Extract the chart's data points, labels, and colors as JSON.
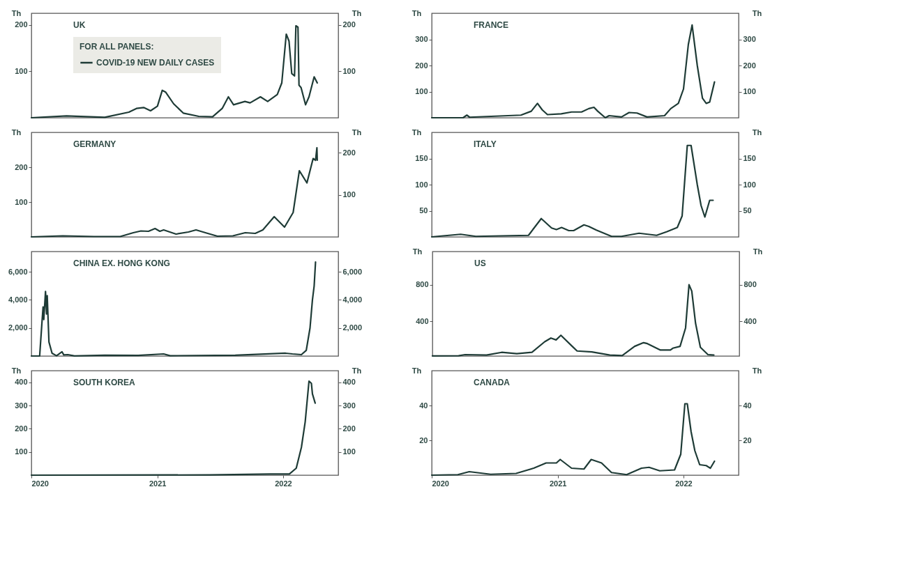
{
  "chart_data": [
    {
      "type": "line",
      "title": "UK",
      "ylabel": "Th",
      "y2label": "Th",
      "legend_title": "FOR ALL PANELS:",
      "legend": "top left",
      "tick_labels": "y",
      "xlim": [
        "2020-01-01",
        "2022-06-10"
      ],
      "xticks": [
        "2020",
        "2021",
        "2022"
      ],
      "ylim": [
        0,
        225
      ],
      "yticks": [
        100,
        200
      ],
      "y2lim": [
        0,
        225
      ],
      "y2ticks": [
        100,
        200
      ],
      "x": [
        "2020-01-01",
        "2020-04-12",
        "2020-08-01",
        "2020-10-10",
        "2020-11-01",
        "2020-11-22",
        "2020-12-12",
        "2021-01-01",
        "2021-01-15",
        "2021-01-25",
        "2021-02-17",
        "2021-03-17",
        "2021-05-01",
        "2021-06-10",
        "2021-07-08",
        "2021-07-26",
        "2021-08-10",
        "2021-09-12",
        "2021-09-27",
        "2021-10-27",
        "2021-11-17",
        "2021-12-15",
        "2021-12-28",
        "2022-01-10",
        "2022-01-18",
        "2022-01-26",
        "2022-02-03",
        "2022-02-07",
        "2022-02-13",
        "2022-02-16",
        "2022-02-22",
        "2022-03-07",
        "2022-03-17",
        "2022-04-01",
        "2022-04-10"
      ],
      "series": [
        {
          "name": "COVID-19 NEW DAILY CASES",
          "color": "#1e3b36",
          "values": [
            0,
            4,
            1,
            12,
            20,
            22,
            15,
            25,
            59,
            55,
            30,
            10,
            3,
            2,
            20,
            45,
            28,
            35,
            32,
            45,
            35,
            50,
            75,
            180,
            165,
            95,
            90,
            198,
            195,
            70,
            65,
            28,
            45,
            88,
            75
          ]
        }
      ]
    },
    {
      "type": "line",
      "title": "FRANCE",
      "ylabel": "Th",
      "y2label": "Th",
      "tick_labels": "y",
      "xlim": [
        "2020-01-01",
        "2022-06-10"
      ],
      "xticks": [
        "2020",
        "2021",
        "2022"
      ],
      "ylim": [
        0,
        400
      ],
      "yticks": [
        100,
        200,
        300
      ],
      "y2lim": [
        0,
        400
      ],
      "y2ticks": [
        100,
        200,
        300
      ],
      "x": [
        "2020-01-01",
        "2020-04-01",
        "2020-04-12",
        "2020-04-20",
        "2020-09-16",
        "2020-10-16",
        "2020-11-03",
        "2020-11-17",
        "2020-12-02",
        "2021-01-11",
        "2021-02-10",
        "2021-03-11",
        "2021-04-01",
        "2021-04-16",
        "2021-04-27",
        "2021-05-19",
        "2021-05-30",
        "2021-07-05",
        "2021-07-27",
        "2021-08-19",
        "2021-09-17",
        "2021-11-07",
        "2021-11-25",
        "2021-12-17",
        "2022-01-01",
        "2022-01-15",
        "2022-01-26",
        "2022-02-10",
        "2022-02-25",
        "2022-03-08",
        "2022-03-18",
        "2022-04-01"
      ],
      "series": [
        {
          "color": "#1e3b36",
          "values": [
            0,
            0,
            10,
            2,
            10,
            25,
            55,
            30,
            12,
            15,
            22,
            22,
            35,
            40,
            25,
            0,
            8,
            3,
            20,
            18,
            3,
            8,
            35,
            55,
            110,
            280,
            355,
            200,
            75,
            55,
            60,
            137
          ]
        }
      ]
    },
    {
      "type": "line",
      "title": "GERMANY",
      "ylabel": "Th",
      "y2label": "Th",
      "tick_labels": "y",
      "xlim": [
        "2020-01-01",
        "2022-06-10"
      ],
      "xticks": [
        "2020",
        "2021",
        "2022"
      ],
      "ylim": [
        0,
        300
      ],
      "yticks": [
        100,
        200
      ],
      "y2lim": [
        0,
        248
      ],
      "y2ticks": [
        100,
        200
      ],
      "x": [
        "2020-01-01",
        "2020-04-01",
        "2020-07-01",
        "2020-09-15",
        "2020-10-23",
        "2020-11-14",
        "2020-12-06",
        "2020-12-25",
        "2021-01-08",
        "2021-01-19",
        "2021-02-24",
        "2021-04-01",
        "2021-04-23",
        "2021-05-27",
        "2021-06-24",
        "2021-08-08",
        "2021-09-13",
        "2021-10-12",
        "2021-11-03",
        "2021-12-06",
        "2022-01-05",
        "2022-01-30",
        "2022-02-17",
        "2022-03-11",
        "2022-03-29",
        "2022-04-05",
        "2022-04-09",
        "2022-04-10"
      ],
      "series": [
        {
          "color": "#1e3b36",
          "values": [
            0,
            3,
            1,
            1,
            12,
            17,
            16,
            24,
            16,
            20,
            8,
            14,
            20,
            10,
            2,
            3,
            12,
            10,
            20,
            58,
            28,
            70,
            190,
            155,
            225,
            220,
            256,
            220
          ]
        }
      ]
    },
    {
      "type": "line",
      "title": "ITALY",
      "ylabel": "Th",
      "y2label": "Th",
      "tick_labels": "y",
      "xlim": [
        "2020-01-01",
        "2022-06-10"
      ],
      "xticks": [
        "2020",
        "2021",
        "2022"
      ],
      "ylim": [
        0,
        200
      ],
      "yticks": [
        50,
        100,
        150
      ],
      "y2lim": [
        0,
        200
      ],
      "y2ticks": [
        50,
        100,
        150
      ],
      "x": [
        "2020-01-01",
        "2020-03-25",
        "2020-05-08",
        "2020-10-08",
        "2020-11-14",
        "2020-12-14",
        "2020-12-28",
        "2021-01-12",
        "2021-02-02",
        "2021-02-16",
        "2021-03-18",
        "2021-04-01",
        "2021-04-23",
        "2021-06-06",
        "2021-07-05",
        "2021-08-25",
        "2021-10-15",
        "2021-11-14",
        "2021-12-14",
        "2021-12-28",
        "2022-01-12",
        "2022-01-23",
        "2022-02-10",
        "2022-02-21",
        "2022-03-04",
        "2022-03-18",
        "2022-03-28"
      ],
      "series": [
        {
          "color": "#1e3b36",
          "values": [
            0,
            5,
            1,
            3,
            35,
            17,
            14,
            18,
            12,
            12,
            23,
            20,
            13,
            1,
            1,
            7,
            3,
            10,
            18,
            40,
            175,
            175,
            100,
            60,
            38,
            70,
            70
          ]
        }
      ]
    },
    {
      "type": "line",
      "title": "CHINA EX. HONG KONG",
      "tick_labels": "y",
      "xlim": [
        "2020-01-01",
        "2022-06-10"
      ],
      "xticks": [
        "2020",
        "2021",
        "2022"
      ],
      "ylim": [
        0,
        7450
      ],
      "yticks": [
        {
          "value": 2000,
          "label": "2,000"
        },
        {
          "value": 4000,
          "label": "4,000"
        },
        {
          "value": 6000,
          "label": "6,000"
        }
      ],
      "y2lim": [
        0,
        7450
      ],
      "y2ticks": [
        {
          "value": 2000,
          "label": "2,000"
        },
        {
          "value": 4000,
          "label": "4,000"
        },
        {
          "value": 6000,
          "label": "6,000"
        }
      ],
      "x": [
        "2020-01-01",
        "2020-01-25",
        "2020-02-01",
        "2020-02-04",
        "2020-02-06",
        "2020-02-11",
        "2020-02-14",
        "2020-02-16",
        "2020-02-21",
        "2020-03-01",
        "2020-03-14",
        "2020-03-30",
        "2020-04-04",
        "2020-04-16",
        "2020-05-05",
        "2020-08-01",
        "2020-11-06",
        "2021-01-19",
        "2021-02-07",
        "2021-08-15",
        "2022-01-08",
        "2022-01-28",
        "2022-02-23",
        "2022-03-09",
        "2022-03-20",
        "2022-03-27",
        "2022-04-01",
        "2022-04-05"
      ],
      "series": [
        {
          "color": "#1e3b36",
          "values": [
            0,
            0,
            2500,
            3500,
            2600,
            4600,
            3000,
            4300,
            1000,
            200,
            20,
            300,
            80,
            100,
            10,
            60,
            40,
            150,
            20,
            60,
            200,
            150,
            100,
            400,
            2000,
            4000,
            5000,
            6700
          ]
        }
      ]
    },
    {
      "type": "line",
      "title": "US",
      "ylabel": "Th",
      "y2label": "Th",
      "tick_labels": "y",
      "xlim": [
        "2020-01-01",
        "2022-06-10"
      ],
      "xticks": [
        "2020",
        "2021",
        "2022"
      ],
      "ylim": [
        25,
        1160
      ],
      "yticks": [
        400,
        800
      ],
      "y2lim": [
        25,
        1160
      ],
      "y2ticks": [
        400,
        800
      ],
      "x": [
        "2020-01-01",
        "2020-03-17",
        "2020-04-05",
        "2020-06-06",
        "2020-07-20",
        "2020-09-02",
        "2020-10-16",
        "2020-11-22",
        "2020-12-10",
        "2020-12-25",
        "2021-01-08",
        "2021-02-10",
        "2021-02-24",
        "2021-04-08",
        "2021-05-30",
        "2021-07-05",
        "2021-08-10",
        "2021-09-05",
        "2021-09-16",
        "2021-10-24",
        "2021-11-22",
        "2021-11-29",
        "2021-12-20",
        "2022-01-05",
        "2022-01-15",
        "2022-01-23",
        "2022-02-03",
        "2022-02-17",
        "2022-03-11",
        "2022-03-28"
      ],
      "series": [
        {
          "color": "#1e3b36",
          "values": [
            26,
            28,
            40,
            35,
            65,
            50,
            65,
            180,
            220,
            200,
            250,
            130,
            80,
            70,
            35,
            30,
            130,
            170,
            160,
            90,
            90,
            110,
            130,
            330,
            800,
            730,
            380,
            120,
            40,
            35
          ]
        }
      ]
    },
    {
      "type": "line",
      "title": "SOUTH KOREA",
      "ylabel": "Th",
      "y2label": "Th",
      "xlim": [
        "2020-01-01",
        "2022-06-10"
      ],
      "xticks": [
        "2020",
        "2021",
        "2022"
      ],
      "ylim": [
        0,
        450
      ],
      "yticks": [
        100,
        200,
        300,
        400
      ],
      "y2lim": [
        0,
        450
      ],
      "y2ticks": [
        100,
        200,
        300,
        400
      ],
      "x": [
        "2020-01-01",
        "2021-06-01",
        "2021-11-24",
        "2022-01-19",
        "2022-02-08",
        "2022-02-23",
        "2022-03-06",
        "2022-03-17",
        "2022-03-24",
        "2022-03-27",
        "2022-04-04"
      ],
      "series": [
        {
          "color": "#1e3b36",
          "values": [
            0,
            1,
            5,
            5,
            30,
            120,
            230,
            405,
            395,
            350,
            310
          ]
        }
      ]
    },
    {
      "type": "line",
      "title": "CANADA",
      "ylabel": "Th",
      "y2label": "Th",
      "xlim": [
        "2020-01-01",
        "2022-06-10"
      ],
      "xticks": [
        "2020",
        "2021",
        "2022"
      ],
      "ylim": [
        0,
        60
      ],
      "yticks": [
        20,
        40
      ],
      "y2lim": [
        0,
        60
      ],
      "y2ticks": [
        20,
        40
      ],
      "x": [
        "2020-01-01",
        "2020-03-17",
        "2020-04-19",
        "2020-06-20",
        "2020-09-02",
        "2020-10-23",
        "2020-11-28",
        "2020-12-28",
        "2021-01-08",
        "2021-02-10",
        "2021-03-18",
        "2021-04-08",
        "2021-05-08",
        "2021-06-06",
        "2021-07-20",
        "2021-09-01",
        "2021-09-23",
        "2021-10-24",
        "2021-12-06",
        "2021-12-24",
        "2022-01-05",
        "2022-01-12",
        "2022-01-23",
        "2022-02-03",
        "2022-02-17",
        "2022-03-08",
        "2022-03-20",
        "2022-04-01"
      ],
      "series": [
        {
          "color": "#1e3b36",
          "values": [
            0,
            0.3,
            2,
            0.5,
            1,
            4,
            7,
            7,
            9,
            4,
            3.5,
            9,
            7,
            1.5,
            0.3,
            4,
            4.5,
            2.5,
            3,
            12,
            41,
            41,
            25,
            14,
            6,
            5.5,
            4,
            8
          ]
        }
      ]
    }
  ]
}
